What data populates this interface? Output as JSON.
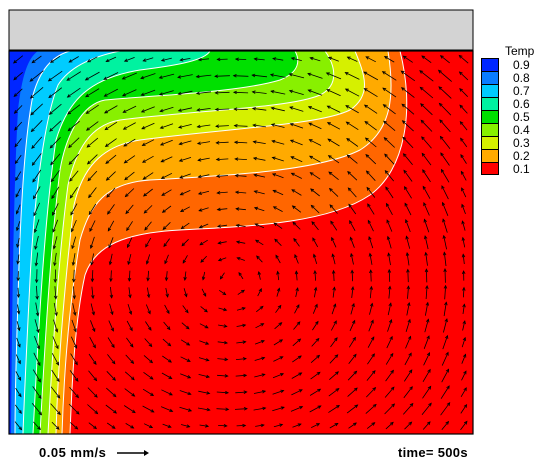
{
  "legend": {
    "title": "Temp",
    "levels": [
      {
        "label": "0.9",
        "color": "#0026ff"
      },
      {
        "label": "0.8",
        "color": "#0a7cff"
      },
      {
        "label": "0.7",
        "color": "#00ccff"
      },
      {
        "label": "0.6",
        "color": "#00f2a0"
      },
      {
        "label": "0.5",
        "color": "#00e000"
      },
      {
        "label": "0.4",
        "color": "#88f000"
      },
      {
        "label": "0.3",
        "color": "#d6f000"
      },
      {
        "label": "0.2",
        "color": "#ffaa00"
      },
      {
        "label": "0.1",
        "color": "#ff0000"
      }
    ]
  },
  "scale_label": "0.05 mm/s",
  "time_label": "time= 500s",
  "colors": {
    "lid": "#d3d3d3",
    "hot": "#ff0000",
    "arrow": "#000000",
    "contour_line": "#ffffff"
  }
}
